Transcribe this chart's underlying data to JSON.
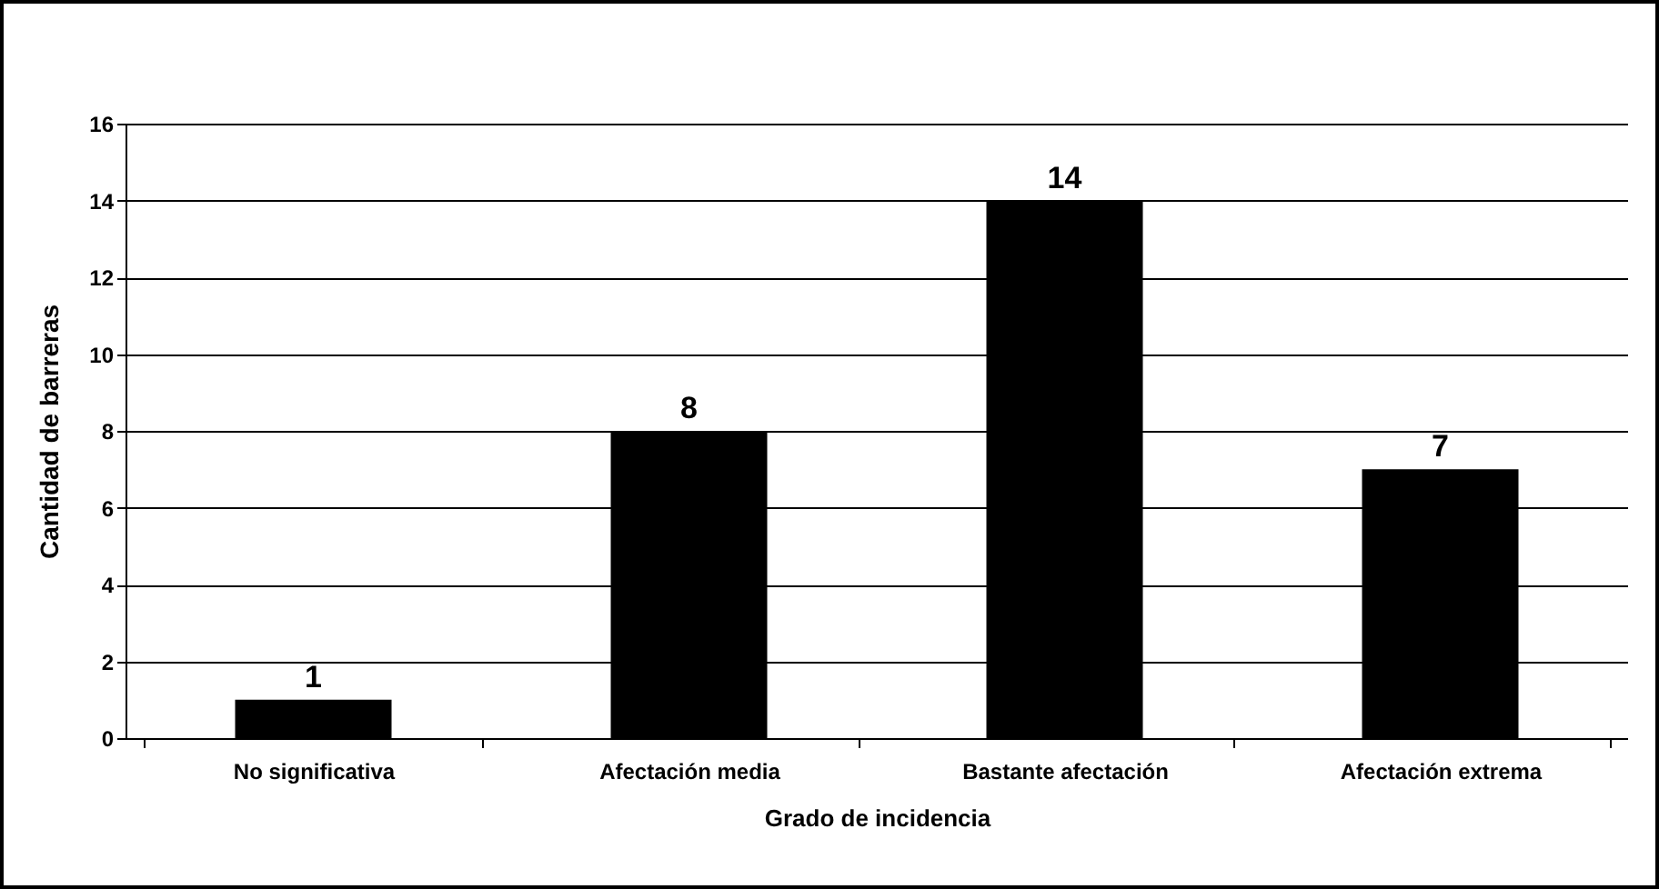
{
  "chart_data": {
    "type": "bar",
    "xlabel": "Grado de incidencia",
    "ylabel": "Cantidad de barreras",
    "categories": [
      "No significativa",
      "Afectación media",
      "Bastante afectación",
      "Afectación extrema"
    ],
    "values": [
      1,
      8,
      14,
      7
    ],
    "color": "#000000",
    "ylim": [
      0,
      16
    ],
    "yticks": [
      0,
      2,
      4,
      6,
      8,
      10,
      12,
      14,
      16
    ],
    "grid": "y",
    "data_labels": true
  }
}
